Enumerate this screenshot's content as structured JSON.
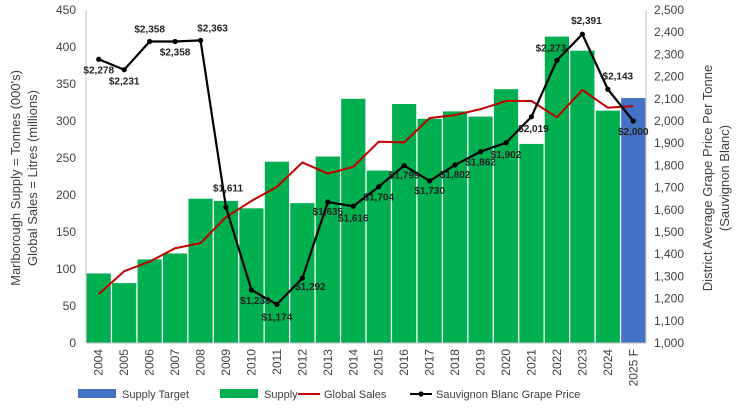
{
  "chart_data": {
    "type": "bar",
    "categories": [
      "2004",
      "2005",
      "2006",
      "2007",
      "2008",
      "2009",
      "2010",
      "2011",
      "2012",
      "2013",
      "2014",
      "2015",
      "2016",
      "2017",
      "2018",
      "2019",
      "2020",
      "2021",
      "2022",
      "2023",
      "2024",
      "2025 F"
    ],
    "ylabel_left": [
      "Marlborough Supply = Tonnes (000's)",
      "Global Sales = Litres (millions)"
    ],
    "ylabel_right": [
      "District Average Grape Price Per Tonne",
      "(Sauvignon Blanc)"
    ],
    "ylim_left": [
      0,
      450
    ],
    "yticks_left": [
      0,
      50,
      100,
      150,
      200,
      250,
      300,
      350,
      400,
      450
    ],
    "ylim_right": [
      1000,
      2500
    ],
    "yticks_right": [
      "1,000",
      "1,100",
      "1,200",
      "1,300",
      "1,400",
      "1,500",
      "1,600",
      "1,700",
      "1,800",
      "1,900",
      "2,000",
      "2,100",
      "2,200",
      "2,300",
      "2,400",
      "2,500"
    ],
    "legend_position": "bottom",
    "grid": false,
    "series": [
      {
        "name": "Supply Target",
        "type": "bar",
        "axis": "left",
        "color": "#4472C4",
        "values": [
          null,
          null,
          null,
          null,
          null,
          null,
          null,
          null,
          null,
          null,
          null,
          null,
          null,
          null,
          null,
          null,
          null,
          null,
          null,
          null,
          null,
          331
        ]
      },
      {
        "name": "Supply",
        "type": "bar",
        "axis": "left",
        "color": "#00B050",
        "values": [
          94,
          81,
          113,
          121,
          195,
          192,
          182,
          245,
          189,
          252,
          330,
          233,
          323,
          303,
          313,
          306,
          343,
          269,
          414,
          395,
          314,
          null
        ]
      },
      {
        "name": "Global Sales",
        "type": "line",
        "axis": "left",
        "color": "#C00000",
        "values": [
          66,
          97,
          110,
          128,
          135,
          170,
          192,
          211,
          244,
          229,
          238,
          272,
          271,
          304,
          308,
          316,
          327,
          327,
          305,
          342,
          318,
          320
        ]
      },
      {
        "name": "Sauvignon Blanc Grape Price",
        "type": "line",
        "axis": "right",
        "color": "#000000",
        "values": [
          2278,
          2231,
          2358,
          2358,
          2363,
          1611,
          1239,
          1174,
          1292,
          1635,
          1616,
          1704,
          1799,
          1730,
          1802,
          1862,
          1902,
          2019,
          2273,
          2391,
          2143,
          2000
        ],
        "labels": [
          "$2,278",
          "$2,231",
          "$2,358",
          "$2,358",
          "$2,363",
          "$1,611",
          "$1,239",
          "$1,174",
          "$1,292",
          "$1,635",
          "$1,616",
          "$1,704",
          "$1,799",
          "$1,730",
          "$1,802",
          "$1,862",
          "$1,902",
          "$2,019",
          "$2,273",
          "$2,391",
          "$2,143",
          "$2,000"
        ]
      }
    ]
  }
}
